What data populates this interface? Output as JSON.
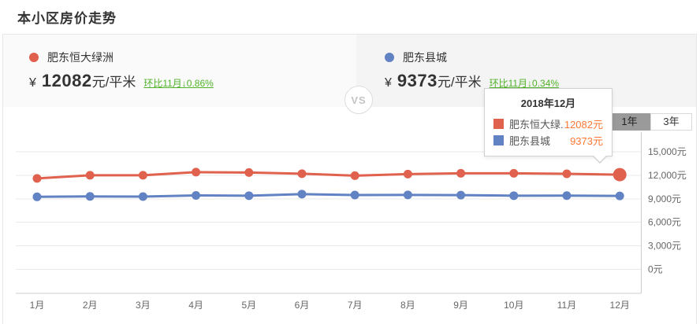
{
  "page": {
    "title": "本小区房价走势"
  },
  "colors": {
    "series_red": "#e0614d",
    "series_blue": "#6182c3",
    "change_green": "#4fb229",
    "tooltip_value_orange": "#ff7733",
    "selected_range_bg": "#9a9a9a"
  },
  "panels": {
    "left": {
      "name": "肥东恒大绿洲",
      "currency": "¥",
      "price": "12082",
      "unit": "元/平米",
      "change": "环比11月↓0.86%"
    },
    "right": {
      "name": "肥东县城",
      "currency": "¥",
      "price": "9373",
      "unit": "元/平米",
      "change": "环比11月↓0.34%"
    },
    "vs_label": "VS"
  },
  "controls": {
    "range_buttons": [
      {
        "label": "1年",
        "selected": true
      },
      {
        "label": "3年",
        "selected": false
      }
    ]
  },
  "tooltip": {
    "title": "2018年12月",
    "rows": [
      {
        "name": "肥东恒大绿...",
        "value": "12082元",
        "color": "#e0614d"
      },
      {
        "name": "肥东县城",
        "value": "9373元",
        "color": "#6182c3"
      }
    ]
  },
  "chart_data": {
    "type": "line",
    "title": "本小区房价走势",
    "categories": [
      "1月",
      "2月",
      "3月",
      "4月",
      "5月",
      "6月",
      "7月",
      "8月",
      "9月",
      "10月",
      "11月",
      "12月"
    ],
    "series": [
      {
        "name": "肥东恒大绿洲",
        "color": "#e0614d",
        "values": [
          11600,
          12000,
          12000,
          12400,
          12350,
          12200,
          11950,
          12150,
          12250,
          12250,
          12187,
          12082
        ]
      },
      {
        "name": "肥东县城",
        "color": "#6182c3",
        "values": [
          9250,
          9300,
          9280,
          9430,
          9400,
          9600,
          9480,
          9500,
          9470,
          9400,
          9405,
          9373
        ]
      }
    ],
    "ylim": [
      0,
      15000
    ],
    "y_ticks": [
      {
        "value": 0,
        "label": "0元"
      },
      {
        "value": 3000,
        "label": "3,000元"
      },
      {
        "value": 6000,
        "label": "6,000元"
      },
      {
        "value": 9000,
        "label": "9,000元"
      },
      {
        "value": 12000,
        "label": "12,000元"
      },
      {
        "value": 15000,
        "label": "15,000元"
      }
    ],
    "grid": true,
    "legend_position": "top-panels",
    "ylabel_side": "right",
    "highlighted_point": {
      "series_index": 0,
      "point_index": 11
    }
  }
}
